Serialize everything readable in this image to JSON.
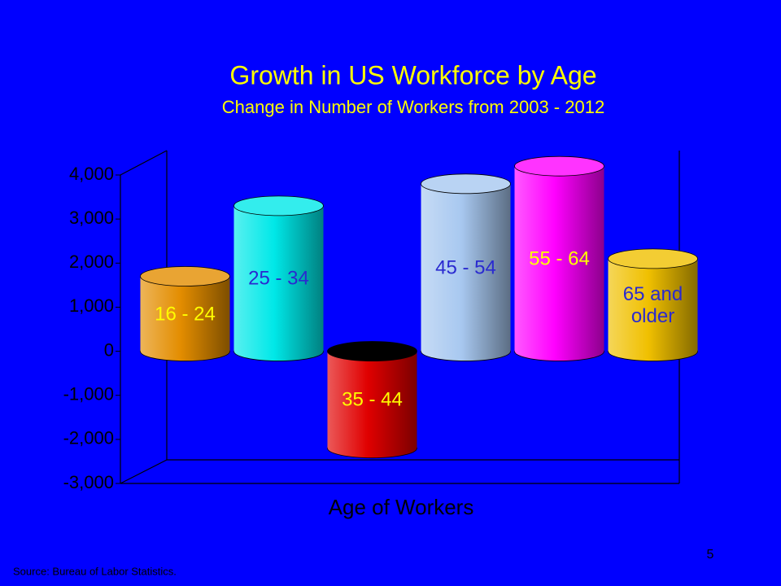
{
  "chart_data": {
    "type": "bar",
    "title": "Growth in US Workforce by Age",
    "subtitle": "Change in Number of Workers from 2003 - 2012",
    "x_label": "Age of Workers",
    "categories": [
      "16 - 24",
      "25 - 34",
      "35 - 44",
      "45 - 54",
      "55 - 64",
      "65 and older"
    ],
    "values": [
      1700,
      3300,
      -2200,
      3800,
      4200,
      2100
    ],
    "colors": [
      "#e38d00",
      "#00e8e8",
      "#e00000",
      "#a8c8f0",
      "#ff00ff",
      "#f0c000"
    ],
    "label_colors": [
      "#ffff00",
      "#2a2ad0",
      "#ffff00",
      "#2a2ad0",
      "#ffff00",
      "#2a2ad0"
    ],
    "ylim": [
      -3000,
      4000
    ],
    "yticks": [
      {
        "value": -3000,
        "label": "-3,000"
      },
      {
        "value": -2000,
        "label": "-2,000"
      },
      {
        "value": -1000,
        "label": "-1,000"
      },
      0,
      {
        "value": 1000,
        "label": "1,000"
      },
      {
        "value": 2000,
        "label": "2,000"
      },
      {
        "value": 3000,
        "label": "3,000"
      },
      {
        "value": 4000,
        "label": "4,000"
      }
    ],
    "source": "Source: Bureau of Labor Statistics.",
    "page_number": "5"
  }
}
